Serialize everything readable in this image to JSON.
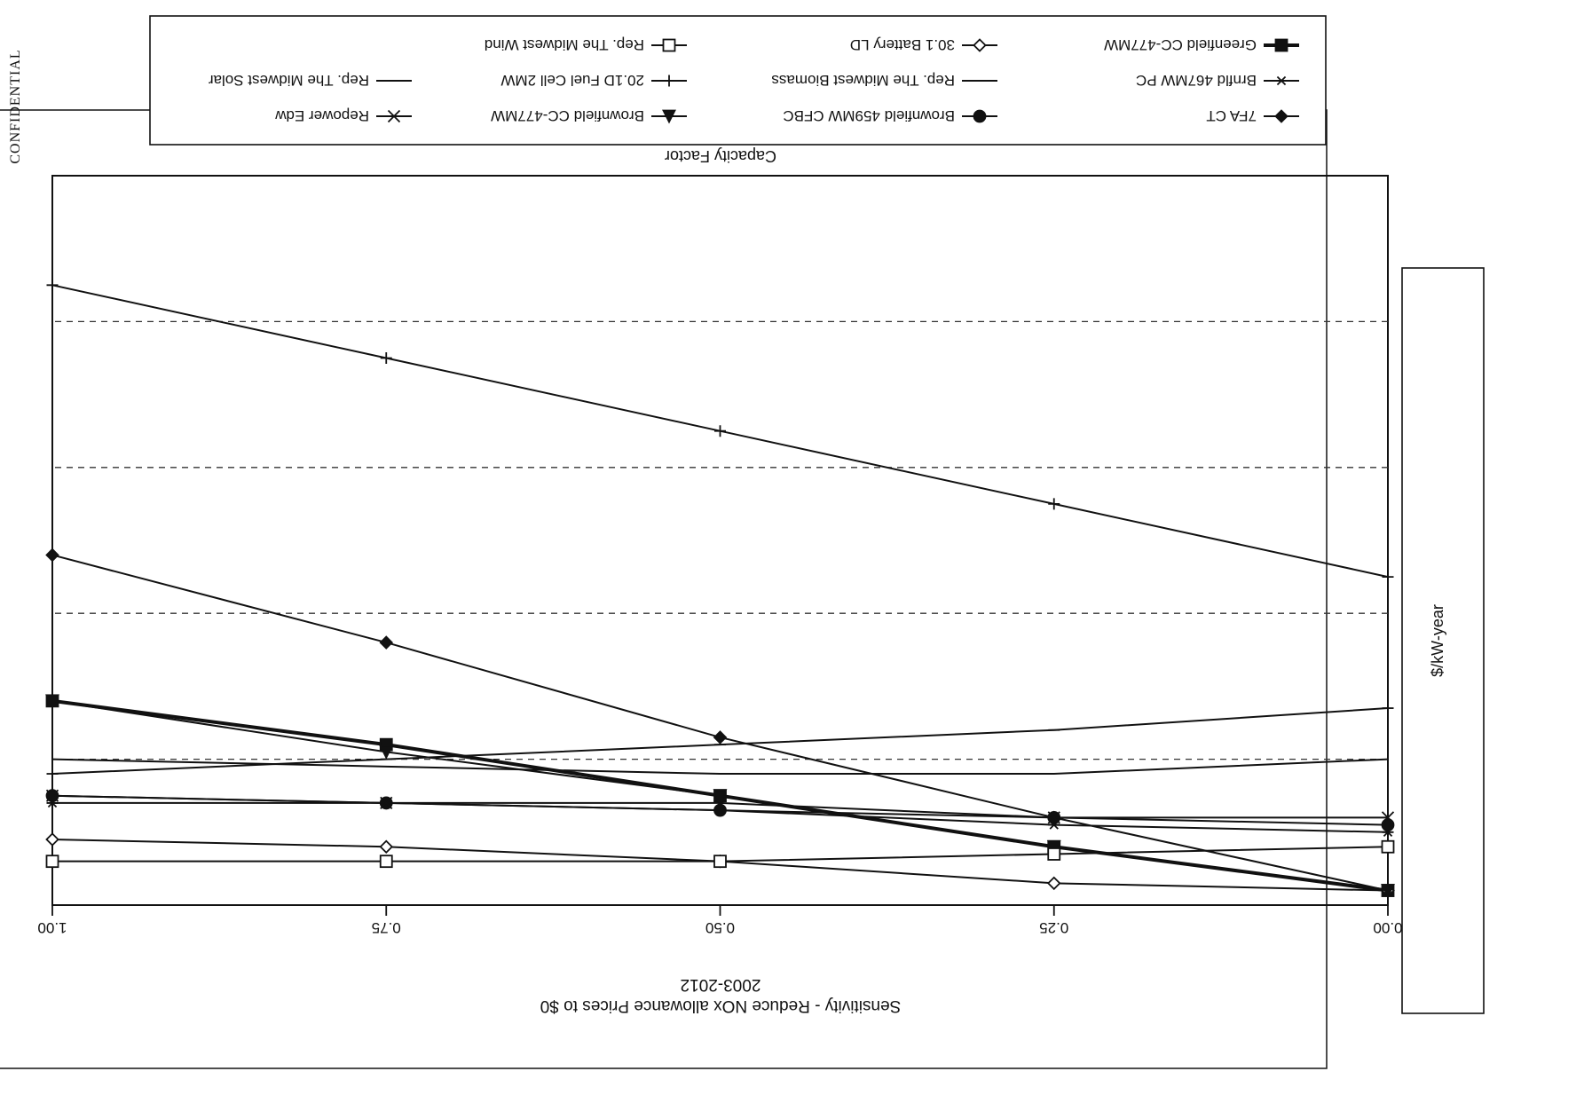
{
  "stamp": "CONFIDENTIAL",
  "chart_data": {
    "type": "line",
    "title": "Sensitivity - Reduce NOx allowance Prices to $0",
    "subtitle": "2003-2012",
    "xlabel": "Capacity Factor",
    "ylabel": "$/kW-year",
    "x": [
      0.0,
      0.25,
      0.5,
      0.75,
      1.0
    ],
    "x_tick_labels": [
      "0.00",
      "0.25",
      "0.50",
      "0.75",
      "1.00"
    ],
    "xlim": [
      0,
      1
    ],
    "ylim": [
      0,
      100
    ],
    "y_ticks": [
      20,
      40,
      60,
      80
    ],
    "grid": "dashed horizontal",
    "legend_position": "top",
    "orientation": "rotated 180 degrees (scanned page printed upside down)",
    "series": [
      {
        "name": "7FA CT",
        "marker": "filled-diamond",
        "width": 2,
        "values": [
          98,
          88,
          77,
          64,
          52
        ]
      },
      {
        "name": "Brnfld 467MW PC",
        "marker": "asterisk",
        "width": 2,
        "values": [
          90,
          89,
          87,
          86,
          86
        ]
      },
      {
        "name": "Greenfield CC-477MW",
        "marker": "filled-square",
        "width": 4,
        "values": [
          98,
          92,
          85,
          78,
          72
        ]
      },
      {
        "name": "Brownfield 459MW CFBC",
        "marker": "filled-circle",
        "width": 2,
        "values": [
          89,
          88,
          87,
          86,
          85
        ]
      },
      {
        "name": "Rep. The Midwest Biomass",
        "marker": "none",
        "width": 2,
        "values": [
          80,
          82,
          82,
          81,
          80
        ]
      },
      {
        "name": "30.1 Battery LD",
        "marker": "open-diamond",
        "width": 2,
        "values": [
          98,
          97,
          94,
          92,
          91
        ]
      },
      {
        "name": "Brownfield CC-477MW",
        "marker": "filled-triangle",
        "width": 2,
        "values": [
          98,
          92,
          85,
          79,
          72
        ]
      },
      {
        "name": "20.1D Fuel Cell 2MW",
        "marker": "plus",
        "width": 2,
        "values": [
          55,
          45,
          35,
          25,
          15
        ]
      },
      {
        "name": "Rep. The Midwest Wind",
        "marker": "open-square",
        "width": 2,
        "values": [
          92,
          93,
          94,
          94,
          94
        ]
      },
      {
        "name": "Repower Edw",
        "marker": "x",
        "width": 2,
        "values": [
          88,
          88,
          86,
          86,
          85
        ]
      },
      {
        "name": "Rep. The Midwest Solar",
        "marker": "dash",
        "width": 2,
        "values": [
          73,
          76,
          78,
          80,
          82
        ]
      }
    ]
  }
}
